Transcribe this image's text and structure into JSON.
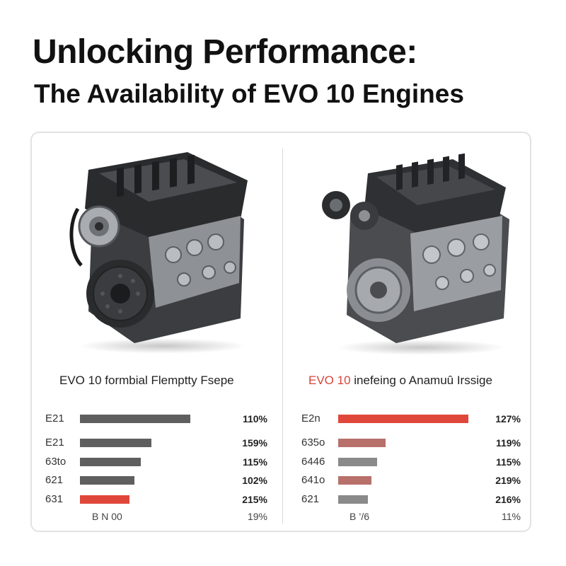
{
  "title": "Unlocking Performance:",
  "subtitle": "The Availability of EVO 10 Engines",
  "panels": [
    {
      "title_prefix": "EVO 10",
      "title_rest": " formbial Flemptty Fsepe",
      "footer_left": "B N 00",
      "footer_right": "19%"
    },
    {
      "title_prefix": "EVO 10",
      "title_rest": " inefeing o Anamuû Irssige",
      "footer_left": "B ’/6",
      "footer_right": "11%"
    }
  ],
  "colors": {
    "gray_bar": "#5f5f5f",
    "red_bar": "#e0473b",
    "muted_red_bar": "#b8706b",
    "light_gray_bar": "#8a8a8a"
  },
  "chart_data": [
    {
      "type": "bar",
      "orientation": "horizontal",
      "title": "EVO 10 formbial Flemptty Fsepe",
      "categories": [
        "E21",
        "E21",
        "63to",
        "621",
        "631"
      ],
      "values": [
        110,
        159,
        115,
        102,
        215
      ],
      "value_labels": [
        "110%",
        "159%",
        "115%",
        "102%",
        "215%"
      ],
      "bar_colors": [
        "#5f5f5f",
        "#5f5f5f",
        "#5f5f5f",
        "#5f5f5f",
        "#e0473b"
      ],
      "bar_length_fraction": [
        0.65,
        0.42,
        0.36,
        0.32,
        0.29
      ],
      "footer": "B N 00",
      "footer_value": "19%"
    },
    {
      "type": "bar",
      "orientation": "horizontal",
      "title": "EVO 10 inefeing o Anamuû Irssige",
      "categories": [
        "E2n",
        "635o",
        "6446",
        "641o",
        "621"
      ],
      "values": [
        127,
        119,
        115,
        219,
        216
      ],
      "value_labels": [
        "127%",
        "119%",
        "115%",
        "219%",
        "216%"
      ],
      "bar_colors": [
        "#e0473b",
        "#b8706b",
        "#8a8a8a",
        "#b8706b",
        "#8a8a8a"
      ],
      "bar_length_fraction": [
        0.74,
        0.27,
        0.22,
        0.19,
        0.17
      ],
      "footer": "B ’/6",
      "footer_value": "11%"
    }
  ]
}
